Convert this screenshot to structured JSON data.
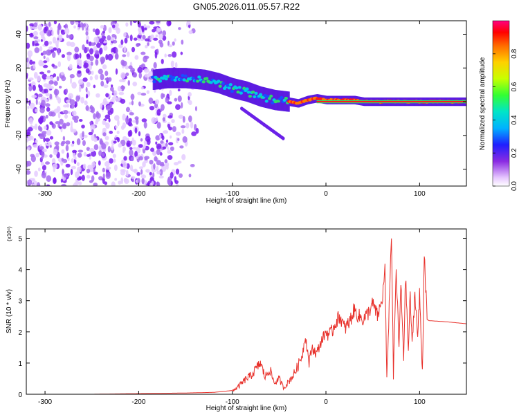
{
  "title": "GN05.2026.011.05.57.R22",
  "chart_data": [
    {
      "type": "heatmap",
      "xlabel": "Height of straight line (km)",
      "ylabel": "Frequency (Hz)",
      "xlim": [
        -320,
        150
      ],
      "ylim": [
        -50,
        48
      ],
      "xticks": [
        -300,
        -200,
        -100,
        0,
        100
      ],
      "yticks": [
        -40,
        -20,
        0,
        20,
        40
      ],
      "colorbar": {
        "label": "Normalized spectral amplitude",
        "range": [
          0,
          1
        ],
        "ticks": [
          0.0,
          0.2,
          0.4,
          0.6,
          0.8
        ],
        "colormap": "white-purple-blue-cyan-green-yellow-orange-red-magenta"
      },
      "ridge": {
        "x": [
          -185,
          -170,
          -150,
          -130,
          -115,
          -100,
          -85,
          -70,
          -55,
          -40,
          -30,
          -20,
          -10,
          0,
          10,
          20,
          30,
          40,
          60,
          80,
          100,
          150
        ],
        "y": [
          13,
          14,
          14,
          13,
          11,
          8,
          6,
          3,
          1,
          0,
          -1,
          1,
          2,
          1,
          1,
          1,
          1,
          0,
          0,
          0,
          0,
          0
        ]
      },
      "branch": {
        "x": [
          -90,
          -80,
          -70,
          -60,
          -50,
          -45
        ],
        "y": [
          -4,
          -8,
          -12,
          -16,
          -20,
          -22
        ]
      }
    },
    {
      "type": "line",
      "xlabel": "Height of straight line (km)",
      "ylabel": "SNR (10 * v/v)",
      "multiplier": "(x10⁴)",
      "xlim": [
        -320,
        150
      ],
      "ylim": [
        0,
        5.3
      ],
      "xticks": [
        -300,
        -200,
        -100,
        0,
        100
      ],
      "yticks": [
        0,
        1,
        2,
        3,
        4,
        5
      ],
      "color": "#e8302a",
      "series": [
        {
          "x": [
            -320,
            -250,
            -200,
            -150,
            -120,
            -100,
            -95,
            -90,
            -85,
            -80,
            -75,
            -70,
            -65,
            -60,
            -55,
            -50,
            -45,
            -40,
            -35,
            -30,
            -25,
            -22,
            -18,
            -15,
            -10,
            -5,
            0,
            5,
            10,
            15,
            20,
            25,
            30,
            35,
            40,
            45,
            50,
            55,
            60,
            63,
            65,
            68,
            70,
            72,
            75,
            78,
            80,
            83,
            85,
            88,
            90,
            92,
            95,
            98,
            100,
            103,
            105,
            108,
            110,
            120,
            130,
            140,
            150
          ],
          "values": [
            0.0,
            0.0,
            0.02,
            0.04,
            0.06,
            0.12,
            0.2,
            0.35,
            0.5,
            0.6,
            0.8,
            1.0,
            0.55,
            0.8,
            0.35,
            0.5,
            0.2,
            0.4,
            0.6,
            0.9,
            1.3,
            1.9,
            1.0,
            1.5,
            1.3,
            1.7,
            2.0,
            1.9,
            2.3,
            2.5,
            2.1,
            2.3,
            2.7,
            2.5,
            2.4,
            2.6,
            2.9,
            2.5,
            3.0,
            4.0,
            0.4,
            3.3,
            5.2,
            0.6,
            4.0,
            1.5,
            3.5,
            1.2,
            3.8,
            1.4,
            3.2,
            1.5,
            3.3,
            1.8,
            3.2,
            0.7,
            4.6,
            2.4,
            2.36,
            2.34,
            2.32,
            2.29,
            2.26
          ]
        }
      ]
    }
  ]
}
